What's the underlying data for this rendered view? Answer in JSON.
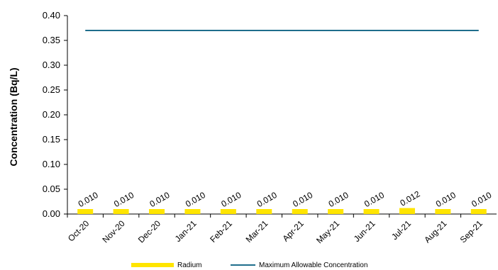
{
  "chart_data": {
    "type": "bar",
    "categories": [
      "Oct-20",
      "Nov-20",
      "Dec-20",
      "Jan-21",
      "Feb-21",
      "Mar-21",
      "Apr-21",
      "May-21",
      "Jun-21",
      "Jul-21",
      "Aug-21",
      "Sep-21"
    ],
    "series": [
      {
        "name": "Radium",
        "type": "bar",
        "color": "#FFE500",
        "values": [
          0.01,
          0.01,
          0.01,
          0.01,
          0.01,
          0.01,
          0.01,
          0.01,
          0.01,
          0.012,
          0.01,
          0.01
        ],
        "labels": [
          "0.010",
          "0.010",
          "0.010",
          "0.010",
          "0.010",
          "0.010",
          "0.010",
          "0.010",
          "0.010",
          "0.012",
          "0.010",
          "0.010"
        ]
      },
      {
        "name": "Maximum Allowable Concentration",
        "type": "line",
        "color": "#1F6E8C",
        "values": [
          0.37,
          0.37,
          0.37,
          0.37,
          0.37,
          0.37,
          0.37,
          0.37,
          0.37,
          0.37,
          0.37,
          0.37
        ]
      }
    ],
    "ylabel": "Concentration (Bq/L)",
    "ylim": [
      0,
      0.4
    ],
    "yticks": [
      "0.00",
      "0.05",
      "0.10",
      "0.15",
      "0.20",
      "0.25",
      "0.30",
      "0.35",
      "0.40"
    ],
    "grid": false,
    "legend_position": "bottom"
  }
}
